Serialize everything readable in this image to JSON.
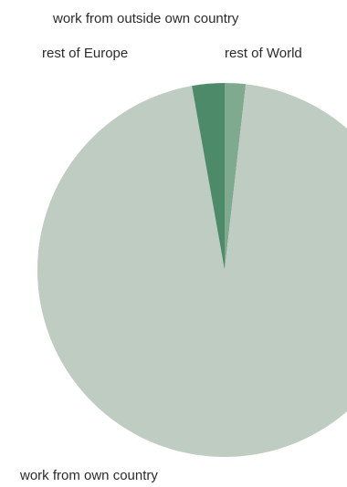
{
  "chart_data": {
    "type": "pie",
    "title": "",
    "group_label": "work from outside own country",
    "slices": [
      {
        "label": "rest of World",
        "value": 1.8,
        "color": "#7faa8f"
      },
      {
        "label": "work from own country",
        "value": 95.4,
        "color": "#bfccc2"
      },
      {
        "label": "rest of Europe",
        "value": 2.8,
        "color": "#4d8a6a"
      }
    ],
    "start_angle_deg": 0,
    "direction": "clockwise",
    "legend": "none"
  }
}
